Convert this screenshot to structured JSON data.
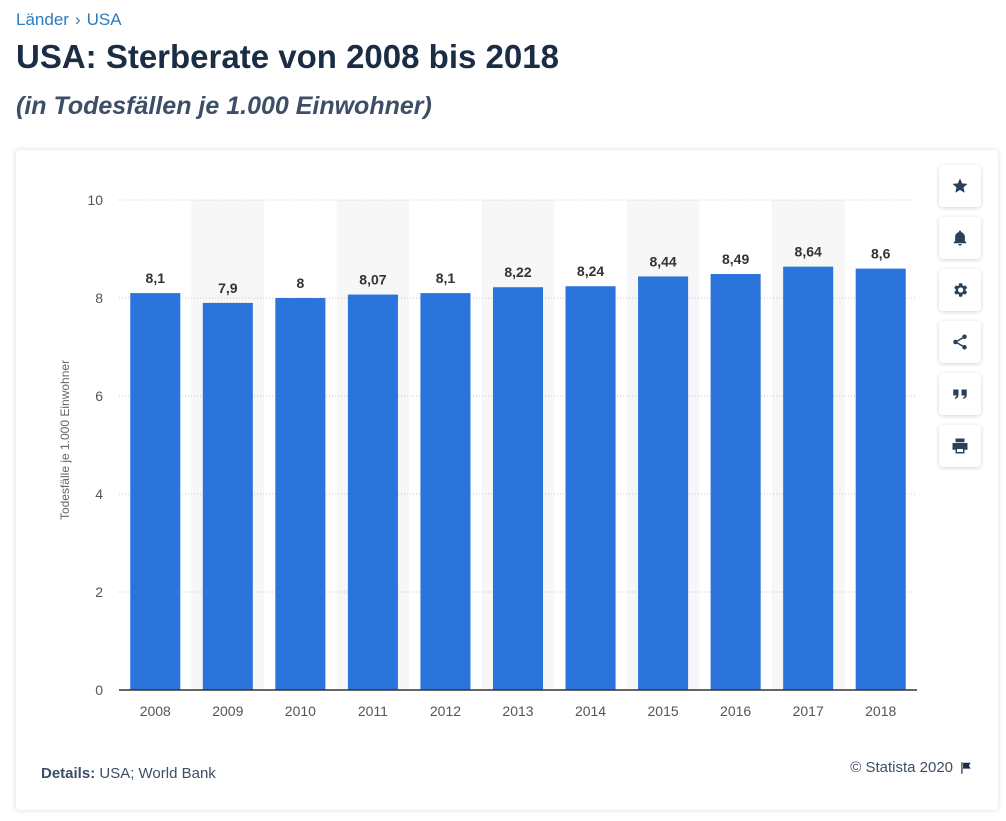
{
  "breadcrumb": {
    "items": [
      "Länder",
      "USA"
    ],
    "separator": "›"
  },
  "header": {
    "title": "USA: Sterberate von 2008 bis 2018",
    "subtitle": "(in Todesfällen je 1.000 Einwohner)"
  },
  "toolbar": {
    "buttons": [
      "star-icon",
      "bell-icon",
      "gear-icon",
      "share-icon",
      "quote-icon",
      "print-icon"
    ]
  },
  "footer": {
    "details_label": "Details:",
    "details_text": "USA; World Bank",
    "copyright": "© Statista 2020",
    "flag_icon": "flag-icon"
  },
  "colors": {
    "bar": "#2a74dc",
    "band": "#f7f7f7",
    "accent": "#2b7bbf",
    "text": "#1b2d45"
  },
  "chart_data": {
    "type": "bar",
    "categories": [
      "2008",
      "2009",
      "2010",
      "2011",
      "2012",
      "2013",
      "2014",
      "2015",
      "2016",
      "2017",
      "2018"
    ],
    "values": [
      8.1,
      7.9,
      8,
      8.07,
      8.1,
      8.22,
      8.24,
      8.44,
      8.49,
      8.64,
      8.6
    ],
    "value_labels": [
      "8,1",
      "7,9",
      "8",
      "8,07",
      "8,1",
      "8,22",
      "8,24",
      "8,44",
      "8,49",
      "8,64",
      "8,6"
    ],
    "ylabel": "Todesfälle je 1.000 Einwohner",
    "xlabel": "",
    "ylim": [
      0,
      10
    ],
    "yticks": [
      0,
      2,
      4,
      6,
      8,
      10
    ],
    "grid": true
  }
}
